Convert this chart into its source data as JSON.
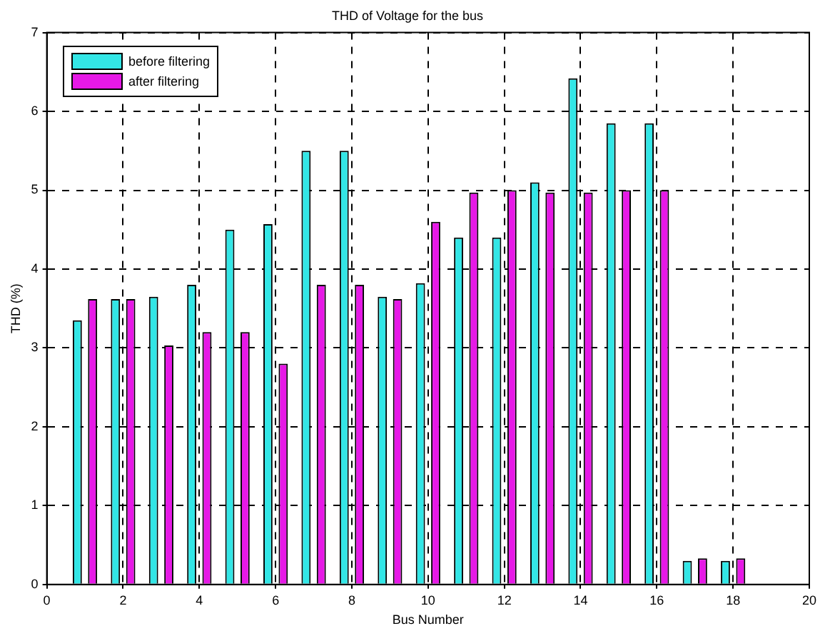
{
  "chart_data": {
    "type": "bar",
    "title": "THD of Voltage for the bus",
    "xlabel": "Bus Number",
    "ylabel": "THD (%)",
    "x": [
      1,
      2,
      3,
      4,
      5,
      6,
      7,
      8,
      9,
      10,
      11,
      12,
      13,
      14,
      15,
      16,
      17,
      18
    ],
    "series": [
      {
        "name": "before filtering",
        "color": "#33e6e6",
        "values": [
          3.35,
          3.62,
          3.65,
          3.8,
          4.5,
          4.57,
          5.5,
          5.5,
          3.65,
          3.82,
          4.4,
          4.4,
          5.1,
          6.42,
          5.85,
          5.85,
          0.3,
          0.3
        ]
      },
      {
        "name": "after filtering",
        "color": "#e619e6",
        "values": [
          3.62,
          3.62,
          3.03,
          3.2,
          3.2,
          2.8,
          3.8,
          3.8,
          3.62,
          4.6,
          4.97,
          5.0,
          4.97,
          4.97,
          5.0,
          5.0,
          0.33,
          0.33
        ]
      }
    ],
    "xlim": [
      0,
      20
    ],
    "xticks": [
      0,
      2,
      4,
      6,
      8,
      10,
      12,
      14,
      16,
      18,
      20
    ],
    "ylim": [
      0,
      7
    ],
    "yticks": [
      0,
      1,
      2,
      3,
      4,
      5,
      6,
      7
    ],
    "grid": true,
    "legend": "top left"
  }
}
